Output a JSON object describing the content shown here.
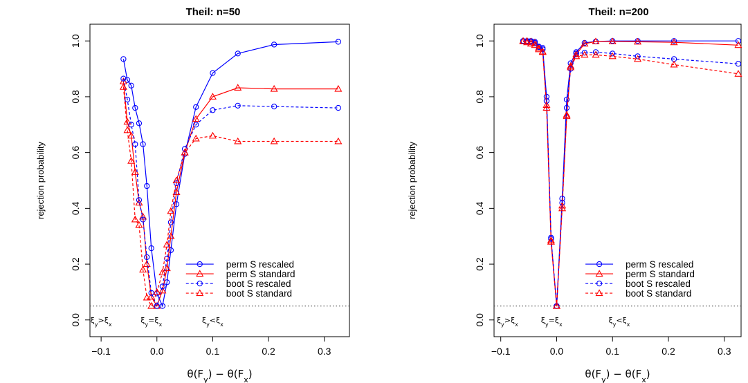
{
  "chart_data": [
    {
      "type": "line",
      "title": "Theil: n=50",
      "xlabel": "θ(F_y) − θ(F_x)",
      "ylabel": "rejection probability",
      "xlim": [
        -0.12,
        0.345
      ],
      "ylim": [
        -0.06,
        1.06
      ],
      "xticks": [
        "−0.1",
        "0.0",
        "0.1",
        "0.2",
        "0.3"
      ],
      "xtick_values": [
        -0.1,
        0.0,
        0.1,
        0.2,
        0.3
      ],
      "yticks": [
        "0.0",
        "0.2",
        "0.4",
        "0.6",
        "0.8",
        "1.0"
      ],
      "ytick_values": [
        0.0,
        0.2,
        0.4,
        0.6,
        0.8,
        1.0
      ],
      "reference_line": 0.05,
      "region_labels": [
        {
          "text": "ξ_y>ξ_x",
          "x": -0.1
        },
        {
          "text": "ξ_y=ξ_x",
          "x": -0.01
        },
        {
          "text": "ξ_y<ξ_x",
          "x": 0.1
        }
      ],
      "legend_position": "bottom-right",
      "series": [
        {
          "name": "perm S rescaled",
          "color": "#0000ff",
          "marker": "circle",
          "dash": "solid",
          "x": [
            -0.06,
            -0.053,
            -0.046,
            -0.039,
            -0.032,
            -0.025,
            -0.018,
            -0.01,
            0.0,
            0.01,
            0.018,
            0.025,
            0.035,
            0.05,
            0.07,
            0.1,
            0.145,
            0.21,
            0.325
          ],
          "y": [
            0.935,
            0.86,
            0.84,
            0.76,
            0.705,
            0.63,
            0.48,
            0.257,
            0.095,
            0.05,
            0.135,
            0.25,
            0.415,
            0.595,
            0.763,
            0.885,
            0.955,
            0.987,
            0.997
          ]
        },
        {
          "name": "perm S standard",
          "color": "#ff0000",
          "marker": "triangle",
          "dash": "solid",
          "x": [
            -0.06,
            -0.053,
            -0.046,
            -0.039,
            -0.032,
            -0.025,
            -0.018,
            -0.01,
            0.0,
            0.01,
            0.018,
            0.025,
            0.035,
            0.05,
            0.07,
            0.1,
            0.145,
            0.21,
            0.325
          ],
          "y": [
            0.855,
            0.71,
            0.66,
            0.53,
            0.42,
            0.37,
            0.2,
            0.083,
            0.05,
            0.105,
            0.185,
            0.3,
            0.458,
            0.6,
            0.72,
            0.8,
            0.832,
            0.828,
            0.828
          ]
        },
        {
          "name": "boot S rescaled",
          "color": "#0000ff",
          "marker": "circle",
          "dash": "dashed",
          "x": [
            -0.06,
            -0.053,
            -0.046,
            -0.039,
            -0.032,
            -0.025,
            -0.018,
            -0.01,
            0.0,
            0.01,
            0.018,
            0.025,
            0.035,
            0.05,
            0.07,
            0.1,
            0.145,
            0.21,
            0.325
          ],
          "y": [
            0.865,
            0.79,
            0.7,
            0.63,
            0.43,
            0.36,
            0.225,
            0.097,
            0.05,
            0.12,
            0.22,
            0.35,
            0.49,
            0.613,
            0.7,
            0.752,
            0.768,
            0.765,
            0.76
          ]
        },
        {
          "name": "boot S standard",
          "color": "#ff0000",
          "marker": "triangle",
          "dash": "dashed",
          "x": [
            -0.06,
            -0.053,
            -0.046,
            -0.039,
            -0.032,
            -0.025,
            -0.018,
            -0.01,
            0.0,
            0.01,
            0.018,
            0.025,
            0.035,
            0.05,
            0.07,
            0.1,
            0.145,
            0.21,
            0.325
          ],
          "y": [
            0.835,
            0.68,
            0.57,
            0.36,
            0.34,
            0.18,
            0.08,
            0.05,
            0.1,
            0.17,
            0.27,
            0.39,
            0.5,
            0.6,
            0.65,
            0.66,
            0.64,
            0.64,
            0.64
          ]
        }
      ]
    },
    {
      "type": "line",
      "title": "Theil: n=200",
      "xlabel": "θ(F_y) − θ(F_x)",
      "ylabel": "rejection probability",
      "xlim": [
        -0.112,
        0.33
      ],
      "ylim": [
        -0.06,
        1.06
      ],
      "xticks": [
        "−0.1",
        "0.0",
        "0.1",
        "0.2",
        "0.3"
      ],
      "xtick_values": [
        -0.1,
        0.0,
        0.1,
        0.2,
        0.3
      ],
      "yticks": [
        "0.0",
        "0.2",
        "0.4",
        "0.6",
        "0.8",
        "1.0"
      ],
      "ytick_values": [
        0.0,
        0.2,
        0.4,
        0.6,
        0.8,
        1.0
      ],
      "reference_line": 0.05,
      "region_labels": [
        {
          "text": "ξ_y>ξ_x",
          "x": -0.088
        },
        {
          "text": "ξ_y=ξ_x",
          "x": -0.009
        },
        {
          "text": "ξ_y<ξ_x",
          "x": 0.112
        }
      ],
      "legend_position": "bottom-right",
      "series": [
        {
          "name": "perm S rescaled",
          "color": "#0000ff",
          "marker": "circle",
          "dash": "solid",
          "x": [
            -0.06,
            -0.053,
            -0.046,
            -0.039,
            -0.032,
            -0.025,
            -0.018,
            -0.01,
            0.0,
            0.01,
            0.018,
            0.025,
            0.035,
            0.05,
            0.07,
            0.1,
            0.145,
            0.21,
            0.325
          ],
          "y": [
            1.0,
            1.0,
            1.0,
            0.997,
            0.98,
            0.975,
            0.8,
            0.29,
            0.05,
            0.435,
            0.79,
            0.92,
            0.96,
            0.993,
            0.998,
            1.0,
            1.0,
            1.0,
            1.0
          ]
        },
        {
          "name": "perm S standard",
          "color": "#ff0000",
          "marker": "triangle",
          "dash": "solid",
          "x": [
            -0.06,
            -0.053,
            -0.046,
            -0.039,
            -0.032,
            -0.025,
            -0.018,
            -0.01,
            0.0,
            0.01,
            0.018,
            0.025,
            0.035,
            0.05,
            0.07,
            0.1,
            0.145,
            0.21,
            0.325
          ],
          "y": [
            1.0,
            1.0,
            0.998,
            0.993,
            0.975,
            0.962,
            0.77,
            0.28,
            0.05,
            0.41,
            0.73,
            0.91,
            0.952,
            0.99,
            0.998,
            0.998,
            0.997,
            0.995,
            0.985
          ]
        },
        {
          "name": "boot S rescaled",
          "color": "#0000ff",
          "marker": "circle",
          "dash": "dashed",
          "x": [
            -0.06,
            -0.053,
            -0.046,
            -0.039,
            -0.032,
            -0.025,
            -0.018,
            -0.01,
            0.0,
            0.01,
            0.018,
            0.025,
            0.035,
            0.05,
            0.07,
            0.1,
            0.145,
            0.21,
            0.325
          ],
          "y": [
            1.0,
            0.998,
            0.997,
            0.993,
            0.978,
            0.97,
            0.785,
            0.295,
            0.05,
            0.42,
            0.76,
            0.9,
            0.955,
            0.958,
            0.96,
            0.955,
            0.945,
            0.935,
            0.918
          ]
        },
        {
          "name": "boot S standard",
          "color": "#ff0000",
          "marker": "triangle",
          "dash": "dashed",
          "x": [
            -0.06,
            -0.053,
            -0.046,
            -0.039,
            -0.032,
            -0.025,
            -0.018,
            -0.01,
            0.0,
            0.01,
            0.018,
            0.025,
            0.035,
            0.05,
            0.07,
            0.1,
            0.145,
            0.21,
            0.325
          ],
          "y": [
            0.998,
            0.995,
            0.99,
            0.985,
            0.97,
            0.96,
            0.76,
            0.285,
            0.05,
            0.4,
            0.735,
            0.905,
            0.945,
            0.95,
            0.95,
            0.945,
            0.935,
            0.915,
            0.882
          ]
        }
      ]
    }
  ]
}
